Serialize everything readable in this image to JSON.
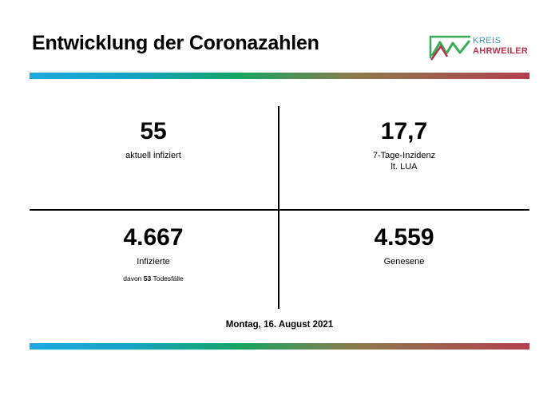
{
  "header": {
    "title": "Entwicklung der Coronazahlen",
    "logo": {
      "line1": "KREIS",
      "line2": "AHRWEILER"
    }
  },
  "stats": {
    "infected_current": {
      "value": "55",
      "label": "aktuell infiziert"
    },
    "incidence": {
      "value": "17,7",
      "label_line1": "7-Tage-Inzidenz",
      "label_line2": "lt. LUA"
    },
    "infected_total": {
      "value": "4.667",
      "label": "Infizierte",
      "deaths_prefix": "davon",
      "deaths_value": "53",
      "deaths_suffix": "Todesfälle"
    },
    "recovered": {
      "value": "4.559",
      "label": "Genesene"
    }
  },
  "footer": {
    "date": "Montag, 16. August 2021"
  },
  "colors": {
    "bar_start": "#1fa8df",
    "bar_mid": "#16a562",
    "bar_end": "#b3404f",
    "logo_blue": "#2a9ad6",
    "logo_green": "#3aa957",
    "logo_red": "#b4344d"
  }
}
